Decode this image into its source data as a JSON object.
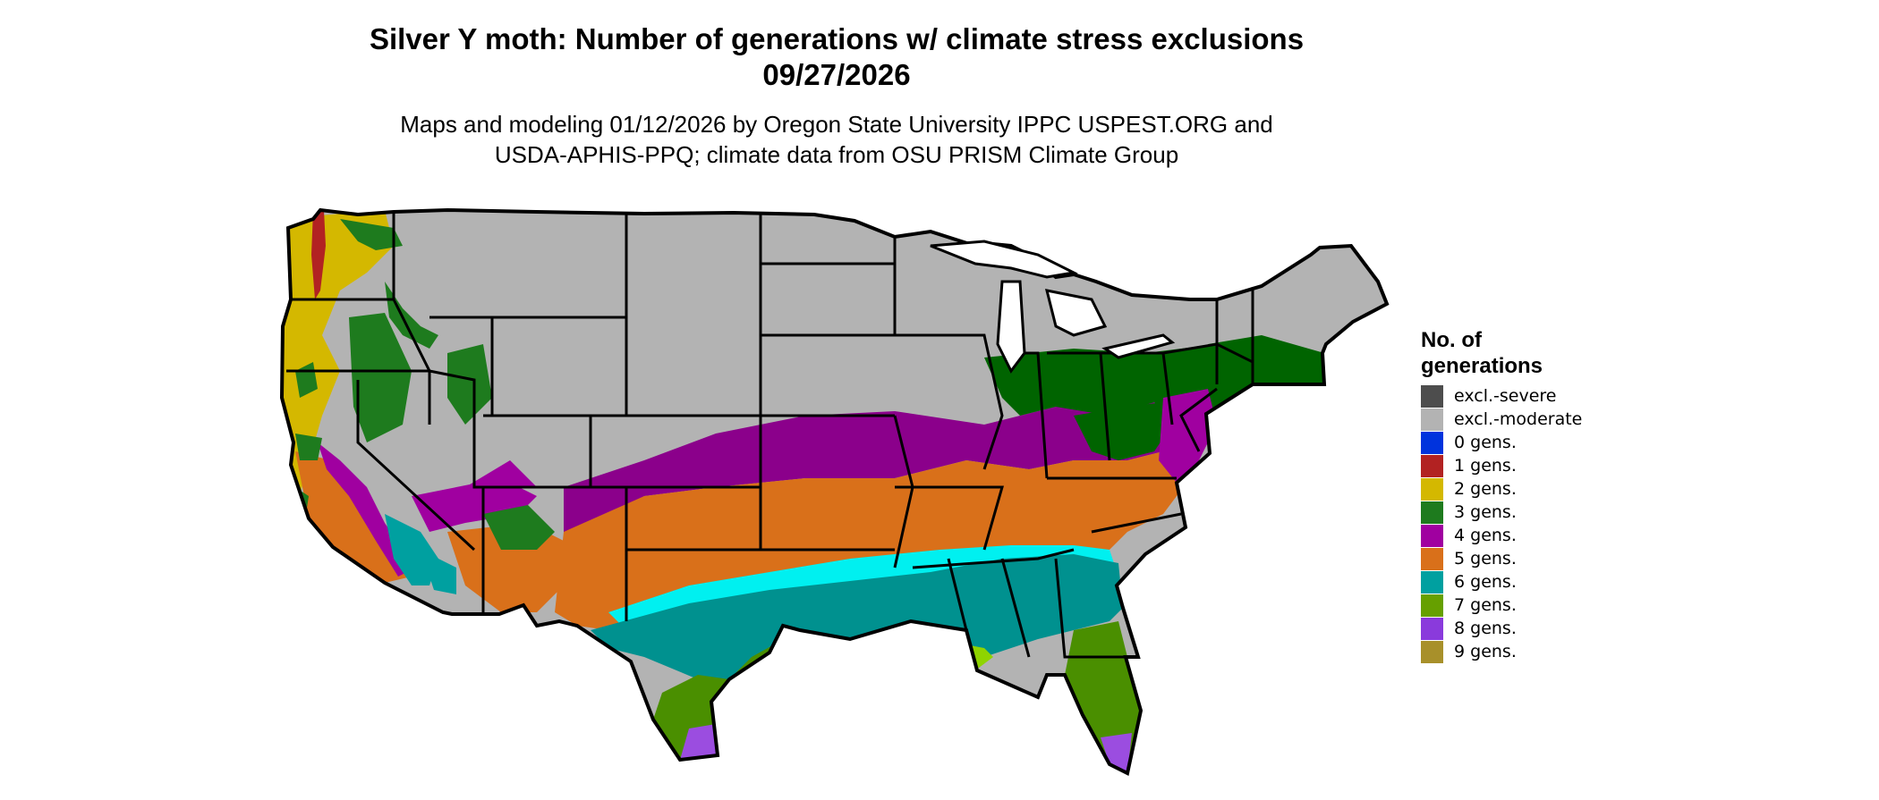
{
  "title": {
    "line1": "Silver Y moth: Number of generations w/ climate stress exclusions",
    "line2": "09/27/2026"
  },
  "subtitle": {
    "line1": "Maps and modeling 01/12/2026 by Oregon State University IPPC USPEST.ORG and",
    "line2": "USDA-APHIS-PPQ; climate data from OSU PRISM Climate Group"
  },
  "legend": {
    "title": "No. of generations",
    "items": [
      {
        "label": "excl.-severe",
        "color": "#4d4d4d"
      },
      {
        "label": "excl.-moderate",
        "color": "#b3b3b3"
      },
      {
        "label": "0 gens.",
        "color": "#0033dd"
      },
      {
        "label": "1 gens.",
        "color": "#b22222"
      },
      {
        "label": "2 gens.",
        "color": "#d4b800"
      },
      {
        "label": "3 gens.",
        "color": "#1e7b1e"
      },
      {
        "label": "4 gens.",
        "color": "#a000a0"
      },
      {
        "label": "5 gens.",
        "color": "#d9701a"
      },
      {
        "label": "6 gens.",
        "color": "#00a0a0"
      },
      {
        "label": "7 gens.",
        "color": "#66a000"
      },
      {
        "label": "8 gens.",
        "color": "#8a3adc"
      },
      {
        "label": "9 gens.",
        "color": "#a8902a"
      }
    ]
  },
  "map_colors": {
    "excluded": "#b3b3b3",
    "gens2": "#d4b800",
    "gens3": "#006400",
    "gens4": "#8b008b",
    "gens5": "#d9701a",
    "gens6": "#00918f",
    "gens6_light": "#00f0f0",
    "gens7": "#4a8f00",
    "gens7_light": "#8fd400",
    "gens8": "#9b4de0",
    "gens1": "#b22222",
    "border": "#000000"
  }
}
